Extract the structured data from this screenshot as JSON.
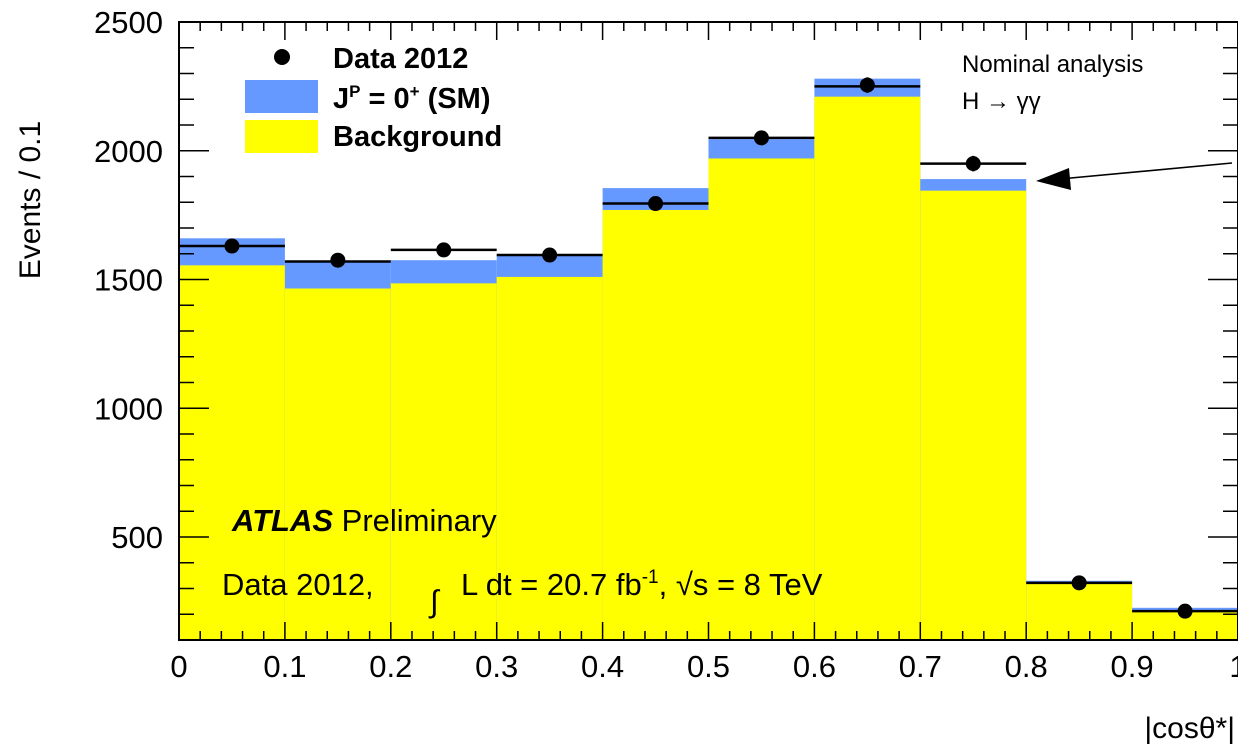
{
  "chart_data": {
    "type": "bar",
    "xlabel": "|cosθ*|",
    "ylabel": "Events / 0.1",
    "xlim": [
      0,
      1
    ],
    "ylim": [
      100,
      2500
    ],
    "x_ticks": [
      "0",
      "0.1",
      "0.2",
      "0.3",
      "0.4",
      "0.5",
      "0.6",
      "0.7",
      "0.8",
      "0.9",
      "1"
    ],
    "y_ticks": [
      "500",
      "1000",
      "1500",
      "2000",
      "2500"
    ],
    "bin_edges": [
      0,
      0.1,
      0.2,
      0.3,
      0.4,
      0.5,
      0.6,
      0.7,
      0.8,
      0.9,
      1.0
    ],
    "series": [
      {
        "name": "Background",
        "color": "#ffff00",
        "values": [
          1555,
          1465,
          1485,
          1510,
          1770,
          1970,
          2210,
          1845,
          325,
          215
        ]
      },
      {
        "name": "J^P = 0^+ (SM)",
        "color": "#6699ff",
        "values": [
          1660,
          1570,
          1575,
          1595,
          1855,
          2045,
          2280,
          1890,
          330,
          225
        ]
      },
      {
        "name": "Data 2012",
        "color": "#000000",
        "values": [
          1630,
          1575,
          1615,
          1595,
          1795,
          2050,
          2255,
          1950,
          322,
          212
        ],
        "errors": [
          25,
          25,
          25,
          25,
          25,
          25,
          30,
          30,
          12,
          10
        ]
      }
    ],
    "sm_expectation_line": [
      1630,
      1570,
      1615,
      1595,
      1795,
      2050,
      2250,
      1950,
      322,
      212
    ],
    "legend": {
      "position": "top-left",
      "entries": [
        {
          "label": "Data 2012",
          "marker": "dot"
        },
        {
          "label_main": "J",
          "label_sup": "P",
          "label_rest": " = 0",
          "label_sup2": "+",
          "label_tail": " (SM)",
          "marker": "box",
          "color": "#6699ff"
        },
        {
          "label": "Background",
          "marker": "box",
          "color": "#ffff00"
        }
      ]
    },
    "annotation": {
      "line1": "Nominal analysis",
      "line2": "H → γγ"
    },
    "atlas_label": {
      "experiment": "ATLAS",
      "status": "Preliminary",
      "lumi_prefix": "Data 2012,",
      "integral": "∫",
      "lumi_text": "L dt = 20.7 fb",
      "lumi_sup": "-1",
      "energy": ", √s = 8 TeV"
    }
  }
}
